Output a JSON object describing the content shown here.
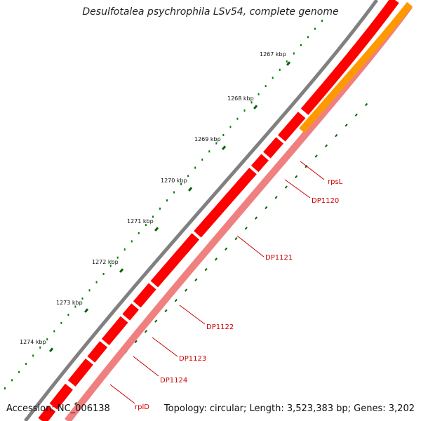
{
  "title": "Desulfotalea psychrophila LSv54, complete genome",
  "footer": {
    "accession_label": "Accession:",
    "accession": "NC_006138",
    "topology": "Topology: circular; Length: 3,523,383 bp; Genes: 3,202"
  },
  "ruler": {
    "unit": "kbp",
    "ticks": [
      "1267 kbp",
      "1268 kbp",
      "1269 kbp",
      "1270 kbp",
      "1271 kbp",
      "1272 kbp",
      "1273 kbp",
      "1274 kbp"
    ]
  },
  "genes": [
    "rpsL",
    "DP1120",
    "DP1121",
    "DP1122",
    "DP1123",
    "DP1124",
    "rplD"
  ],
  "colors": {
    "backbone": "#808080",
    "cds_forward": "#ff0000",
    "cds_reverse": "#f08080",
    "other_feature": "#ff9900",
    "minor_tick": "#008000",
    "major_tick": "#006400",
    "label": "#cc0000"
  }
}
